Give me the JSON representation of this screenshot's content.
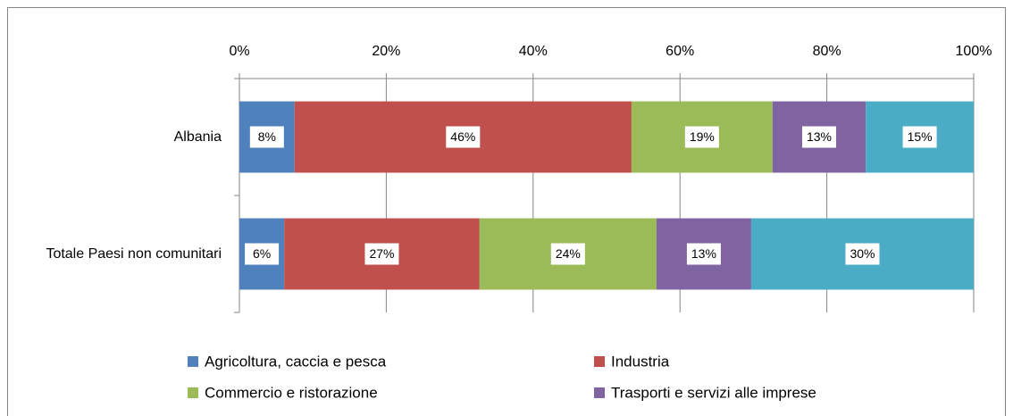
{
  "chart_data": {
    "type": "stacked_barh",
    "categories": [
      "Albania",
      "Totale Paesi non comunitari"
    ],
    "series": [
      {
        "name": "Agricoltura, caccia e pesca",
        "color": "#4f81bd",
        "values": [
          7.5,
          6.1
        ],
        "value_labels": [
          "8%",
          "6%"
        ]
      },
      {
        "name": "Industria",
        "color": "#c0504d",
        "values": [
          45.9,
          26.6
        ],
        "value_labels": [
          "46%",
          "27%"
        ]
      },
      {
        "name": "Commercio e ristorazione",
        "color": "#9bbb59",
        "values": [
          19.2,
          24.1
        ],
        "value_labels": [
          "19%",
          "24%"
        ]
      },
      {
        "name": "Trasporti e servizi alle imprese",
        "color": "#8064a2",
        "values": [
          12.7,
          12.9
        ],
        "value_labels": [
          "13%",
          "13%"
        ]
      },
      {
        "color": "#4bacc6",
        "values": [
          14.7,
          30.3
        ],
        "value_labels": [
          "15%",
          "30%"
        ]
      }
    ],
    "xlim": [
      0,
      100
    ],
    "xticks": [
      {
        "value": 0,
        "label": "0%"
      },
      {
        "value": 20,
        "label": "20%"
      },
      {
        "value": 40,
        "label": "40%"
      },
      {
        "value": 60,
        "label": "60%"
      },
      {
        "value": 80,
        "label": "80%"
      },
      {
        "value": 100,
        "label": "100%"
      }
    ],
    "grid": true
  }
}
